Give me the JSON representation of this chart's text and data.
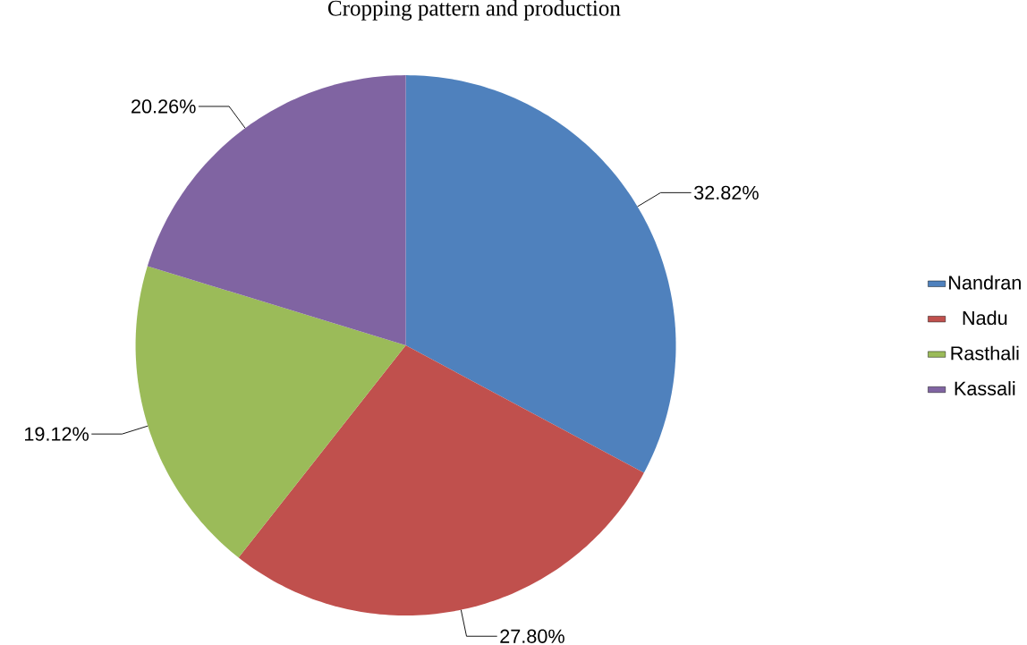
{
  "chart_data": {
    "type": "pie",
    "title": "Cropping pattern and production",
    "categories": [
      "Nandran",
      "Nadu",
      "Rasthali",
      "Kassali"
    ],
    "values": [
      32.82,
      27.8,
      19.12,
      20.26
    ],
    "colors": [
      "#4f81bd",
      "#c0504d",
      "#9bbb59",
      "#8064a2"
    ],
    "value_labels": [
      "32.82%",
      "27.80%",
      "19.12%",
      "20.26%"
    ],
    "legend": "right"
  }
}
